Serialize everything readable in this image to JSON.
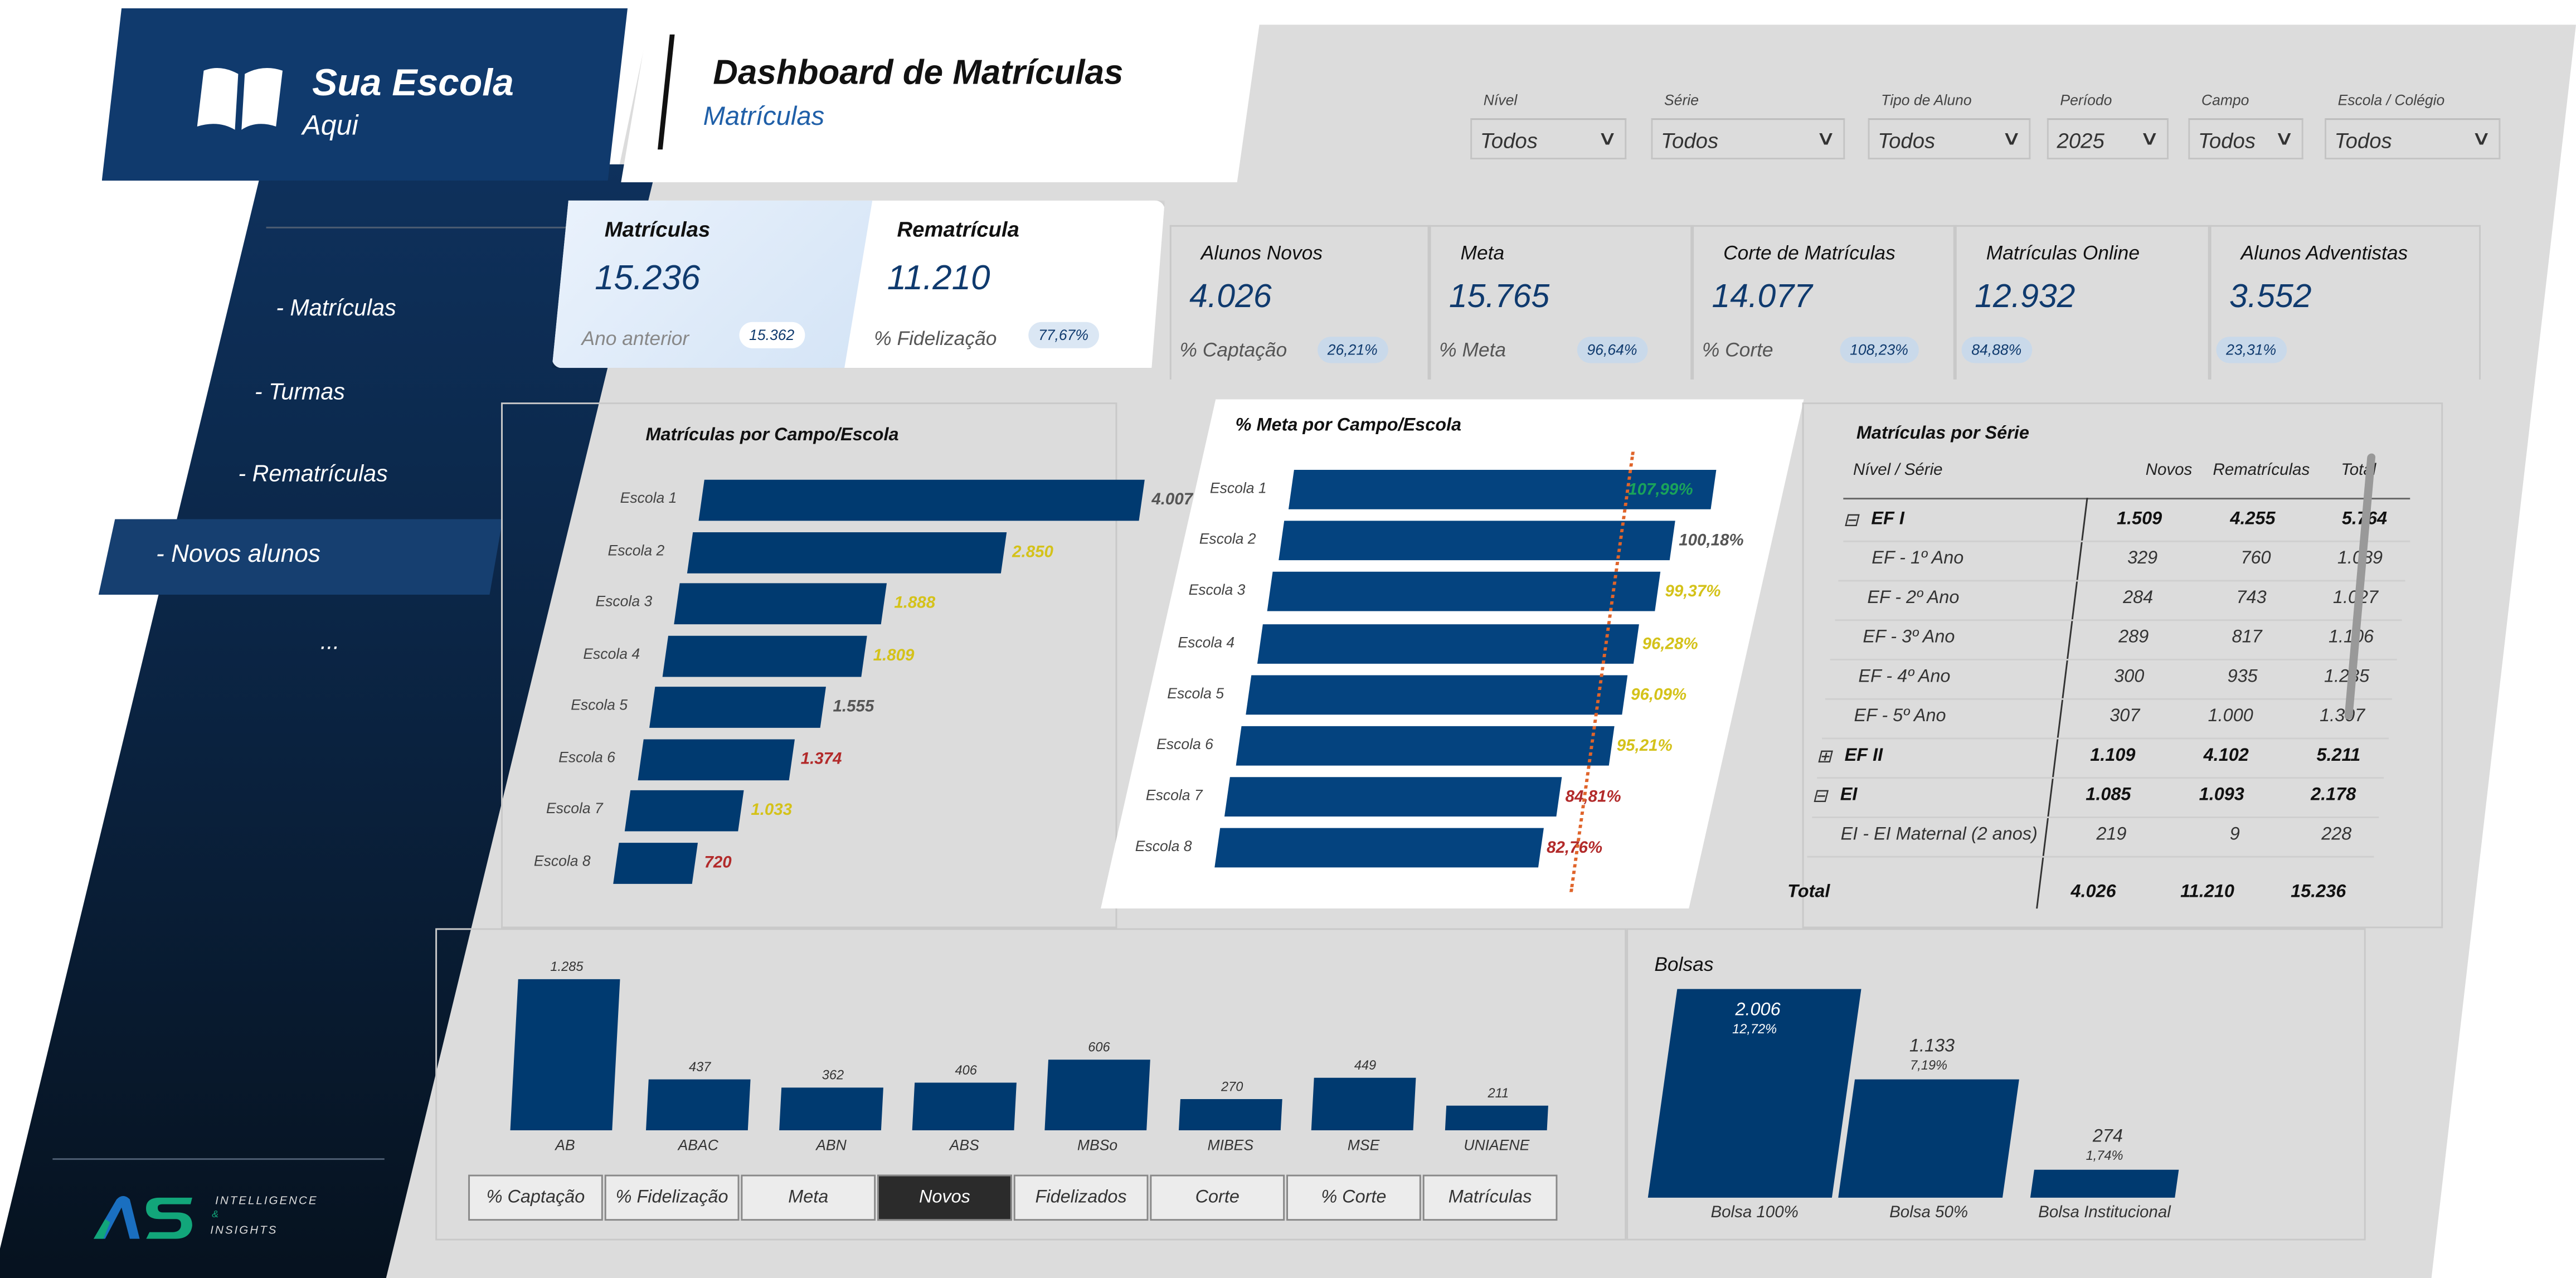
{
  "brand": {
    "name": "Sua Escola",
    "sub": "Aqui",
    "book_icon": "open-book-icon"
  },
  "header": {
    "title": "Dashboard de Matrículas",
    "subtitle": "Matrículas"
  },
  "nav": {
    "items": [
      {
        "label": "- Matrículas"
      },
      {
        "label": "- Turmas"
      },
      {
        "label": "- Rematrículas"
      },
      {
        "label": "- Novos alunos",
        "active": true
      },
      {
        "label": "..."
      }
    ]
  },
  "footer_logo": {
    "mark": "AS",
    "line1": "INTELLIGENCE",
    "line2": "&",
    "line3": "INSIGHTS",
    "colors": [
      "#1a6fc0",
      "#12a67a"
    ]
  },
  "filters": [
    {
      "label": "Nível",
      "value": "Todos"
    },
    {
      "label": "Série",
      "value": "Todos"
    },
    {
      "label": "Tipo de Aluno",
      "value": "Todos"
    },
    {
      "label": "Período",
      "value": "2025"
    },
    {
      "label": "Campo",
      "value": "Todos"
    },
    {
      "label": "Escola / Colégio",
      "value": "Todos"
    }
  ],
  "kpis": {
    "matriculas": {
      "label": "Matrículas",
      "value": "15.236",
      "sub": "Ano anterior",
      "badge": "15.362"
    },
    "rematricula": {
      "label": "Rematrícula",
      "value": "11.210",
      "sub": "% Fidelização",
      "badge": "77,67%"
    },
    "cards": [
      {
        "label": "Alunos Novos",
        "value": "4.026",
        "sub": "% Captação",
        "badge": "26,21%"
      },
      {
        "label": "Meta",
        "value": "15.765",
        "sub": "% Meta",
        "badge": "96,64%"
      },
      {
        "label": "Corte de Matrículas",
        "value": "14.077",
        "sub": "% Corte",
        "badge": "108,23%"
      },
      {
        "label": "Matrículas Online",
        "value": "12.932",
        "sub": "",
        "badge": "84,88%"
      },
      {
        "label": "Alunos Adventistas",
        "value": "3.552",
        "sub": "",
        "badge": "23,31%"
      }
    ]
  },
  "colors": {
    "bar": "#003a70",
    "good": "#1aa35a",
    "neutral": "#555555",
    "warn": "#d4c21a",
    "bad": "#b22a2a",
    "target_line": "#e0642a"
  },
  "chart_data": [
    {
      "type": "bar",
      "orientation": "horizontal",
      "title": "Matrículas por Campo/Escola",
      "categories": [
        "Escola 1",
        "Escola 2",
        "Escola 3",
        "Escola 4",
        "Escola 5",
        "Escola 6",
        "Escola 7",
        "Escola 8"
      ],
      "values": [
        4007,
        2850,
        1888,
        1809,
        1555,
        1374,
        1033,
        720
      ],
      "labels": [
        "4.007",
        "2.850",
        "1.888",
        "1.809",
        "1.555",
        "1.374",
        "1.033",
        "720"
      ],
      "label_status": [
        "neutral",
        "warn",
        "warn",
        "warn",
        "neutral",
        "bad",
        "warn",
        "bad"
      ]
    },
    {
      "type": "bar",
      "orientation": "horizontal",
      "title": "% Meta por Campo/Escola",
      "categories": [
        "Escola 1",
        "Escola 2",
        "Escola 3",
        "Escola 4",
        "Escola 5",
        "Escola 6",
        "Escola 7",
        "Escola 8"
      ],
      "values": [
        107.99,
        100.18,
        99.37,
        96.28,
        96.09,
        95.21,
        84.81,
        82.76
      ],
      "labels": [
        "107,99%",
        "100,18%",
        "99,37%",
        "96,28%",
        "96,09%",
        "95,21%",
        "84,81%",
        "82,76%"
      ],
      "label_status": [
        "good",
        "neutral",
        "warn",
        "warn",
        "warn",
        "warn",
        "bad",
        "bad"
      ],
      "reference_line": 100
    },
    {
      "type": "bar",
      "orientation": "vertical",
      "title": "",
      "categories": [
        "AB",
        "ABAC",
        "ABN",
        "ABS",
        "MBSo",
        "MIBES",
        "MSE",
        "UNIAENE"
      ],
      "values": [
        1285,
        437,
        362,
        406,
        606,
        270,
        449,
        211
      ],
      "labels": [
        "1.285",
        "437",
        "362",
        "406",
        "606",
        "270",
        "449",
        "211"
      ]
    },
    {
      "type": "bar",
      "orientation": "vertical",
      "title": "Bolsas",
      "categories": [
        "Bolsa 100%",
        "Bolsa 50%",
        "Bolsa Institucional"
      ],
      "values": [
        2006,
        1133,
        274
      ],
      "labels": [
        "2.006",
        "1.133",
        "274"
      ],
      "percents": [
        "12,72%",
        "7,19%",
        "1,74%"
      ]
    }
  ],
  "measure_toggles": {
    "items": [
      "% Captação",
      "% Fidelização",
      "Meta",
      "Novos",
      "Fidelizados",
      "Corte",
      "% Corte",
      "Matrículas"
    ],
    "active": "Novos"
  },
  "table": {
    "title": "Matrículas por Série",
    "columns": [
      "Nível / Série",
      "Novos",
      "Rematrículas",
      "Total"
    ],
    "rows": [
      {
        "name": "EF I",
        "novos": "1.509",
        "rem": "4.255",
        "total": "5.764",
        "level": 0,
        "expander": "⊟"
      },
      {
        "name": "EF - 1º Ano",
        "novos": "329",
        "rem": "760",
        "total": "1.089",
        "level": 1
      },
      {
        "name": "EF - 2º Ano",
        "novos": "284",
        "rem": "743",
        "total": "1.027",
        "level": 1
      },
      {
        "name": "EF - 3º Ano",
        "novos": "289",
        "rem": "817",
        "total": "1.106",
        "level": 1
      },
      {
        "name": "EF - 4º Ano",
        "novos": "300",
        "rem": "935",
        "total": "1.235",
        "level": 1
      },
      {
        "name": "EF - 5º Ano",
        "novos": "307",
        "rem": "1.000",
        "total": "1.307",
        "level": 1
      },
      {
        "name": "EF II",
        "novos": "1.109",
        "rem": "4.102",
        "total": "5.211",
        "level": 0,
        "expander": "⊞"
      },
      {
        "name": "EI",
        "novos": "1.085",
        "rem": "1.093",
        "total": "2.178",
        "level": 0,
        "expander": "⊟"
      },
      {
        "name": "EI - EI Maternal (2 anos)",
        "novos": "219",
        "rem": "9",
        "total": "228",
        "level": 1
      }
    ],
    "total": {
      "name": "Total",
      "novos": "4.026",
      "rem": "11.210",
      "total": "15.236"
    }
  }
}
